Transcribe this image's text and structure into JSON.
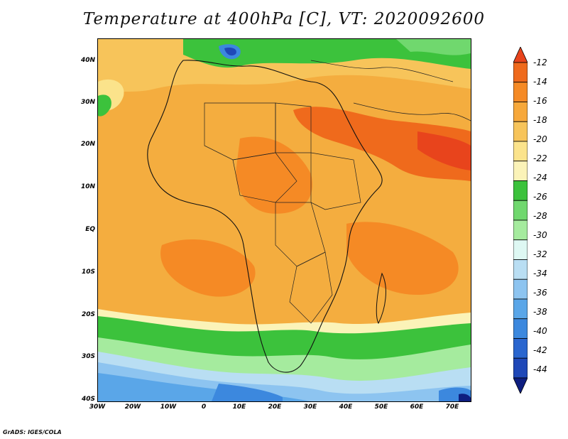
{
  "title": "Temperature at 400hPa [C], VT: 2020092600",
  "footer": "GrADS: IGES/COLA",
  "map": {
    "lat_ticks": [
      "40N",
      "30N",
      "20N",
      "10N",
      "EQ",
      "10S",
      "20S",
      "30S",
      "40S"
    ],
    "lon_ticks": [
      "30W",
      "20W",
      "10W",
      "0",
      "10E",
      "20E",
      "30E",
      "40E",
      "50E",
      "60E",
      "70E"
    ],
    "lon_range": [
      -30,
      75
    ],
    "lat_range": [
      -40,
      45
    ]
  },
  "legend": {
    "levels": [
      "-12",
      "-14",
      "-16",
      "-18",
      "-20",
      "-22",
      "-24",
      "-26",
      "-28",
      "-30",
      "-32",
      "-34",
      "-36",
      "-38",
      "-40",
      "-42",
      "-44"
    ],
    "colors": [
      "#e8441c",
      "#ef6a1c",
      "#f58a25",
      "#f7a83a",
      "#f7c45a",
      "#fbe38b",
      "#fbf3b8",
      "#3cc23c",
      "#70d86e",
      "#a5eb9e",
      "#def8f3",
      "#b9def3",
      "#8dc4f0",
      "#5aa6e8",
      "#3c88de",
      "#2a66cf",
      "#1f48b8",
      "#0e1e80"
    ]
  }
}
